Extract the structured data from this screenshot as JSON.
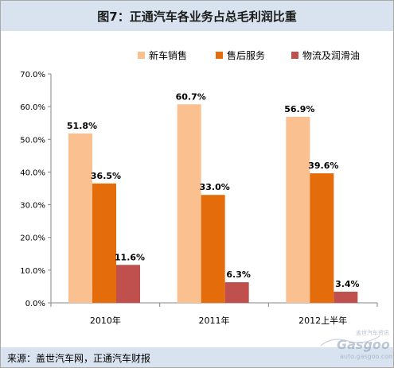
{
  "title": "图7：正通汽车各业务占总毛利润比重",
  "source": "来源：盖世汽车网，正通汽车财报",
  "watermark": {
    "top": "盖世汽车资讯",
    "brand": "Gasgoo",
    "url": "auto.gasgoo.com"
  },
  "colors": {
    "series1": "#fac090",
    "series2": "#e46c0a",
    "series3": "#c0504d",
    "bg_header": "#d9e3f0"
  },
  "chart_data": {
    "type": "bar",
    "categories": [
      "2010年",
      "2011年",
      "2012上半年"
    ],
    "series": [
      {
        "name": "新车销售",
        "values": [
          51.8,
          60.7,
          56.9
        ],
        "labels": [
          "51.8%",
          "60.7%",
          "56.9%"
        ]
      },
      {
        "name": "售后服务",
        "values": [
          36.5,
          33.0,
          39.6
        ],
        "labels": [
          "36.5%",
          "33.0%",
          "39.6%"
        ]
      },
      {
        "name": "物流及润滑油",
        "values": [
          11.6,
          6.3,
          3.4
        ],
        "labels": [
          "11.6%",
          "6.3%",
          "3.4%"
        ]
      }
    ],
    "ylim": [
      0,
      70
    ],
    "yticks": [
      "0.0%",
      "10.0%",
      "20.0%",
      "30.0%",
      "40.0%",
      "50.0%",
      "60.0%",
      "70.0%"
    ],
    "grid": false,
    "legend": "top-right"
  }
}
